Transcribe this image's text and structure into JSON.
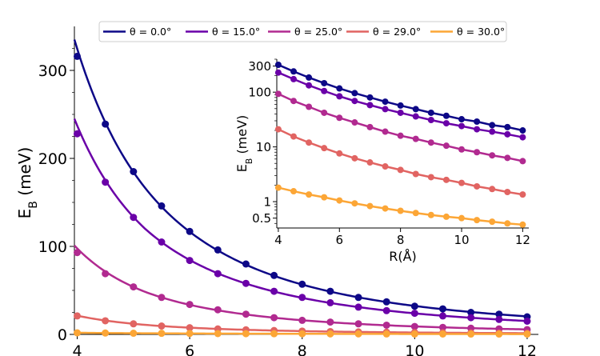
{
  "chart_data": [
    {
      "type": "line",
      "role": "main",
      "xlabel": "",
      "ylabel": "E_B (meV)",
      "xlim": [
        3.95,
        12.2
      ],
      "ylim": [
        0,
        350
      ],
      "xticks": [
        4,
        6,
        8,
        10,
        12
      ],
      "yticks": [
        0,
        100,
        200,
        300
      ],
      "grid": false,
      "legend_position": "top-center",
      "series": [
        {
          "name": "θ = 0.0°",
          "color": "#0d0887",
          "x": [
            4,
            4.5,
            5,
            5.5,
            6,
            6.5,
            7,
            7.5,
            8,
            8.5,
            9,
            9.5,
            10,
            10.5,
            11,
            11.5,
            12
          ],
          "points": [
            316,
            239,
            185,
            146,
            117,
            96,
            80,
            67,
            57,
            49,
            42,
            37,
            32,
            29,
            25,
            23,
            20
          ],
          "fit_start": 335
        },
        {
          "name": "θ = 15.0°",
          "color": "#6a00a8",
          "x": [
            4,
            4.5,
            5,
            5.5,
            6,
            6.5,
            7,
            7.5,
            8,
            8.5,
            9,
            9.5,
            10,
            10.5,
            11,
            11.5,
            12
          ],
          "points": [
            228,
            173,
            133,
            105,
            84,
            69,
            58,
            49,
            42,
            36,
            31,
            27,
            24,
            21,
            19,
            17,
            15
          ],
          "fit_start": 245
        },
        {
          "name": "θ = 25.0°",
          "color": "#b12a90",
          "x": [
            4,
            4.5,
            5,
            5.5,
            6,
            6.5,
            7,
            7.5,
            8,
            8.5,
            9,
            9.5,
            10,
            10.5,
            11,
            11.5,
            12
          ],
          "points": [
            93,
            69,
            54,
            42,
            34,
            28,
            23,
            19,
            16,
            14,
            12,
            10.5,
            9,
            8,
            7,
            6.3,
            5.5
          ],
          "fit_start": 101
        },
        {
          "name": "θ = 29.0°",
          "color": "#e16462",
          "x": [
            4,
            4.5,
            5,
            5.5,
            6,
            6.5,
            7,
            7.5,
            8,
            8.5,
            9,
            9.5,
            10,
            10.5,
            11,
            11.5,
            12
          ],
          "points": [
            21,
            15.5,
            12,
            9.5,
            7.6,
            6.2,
            5.2,
            4.4,
            3.8,
            3.2,
            2.8,
            2.5,
            2.2,
            1.9,
            1.7,
            1.5,
            1.35
          ],
          "fit_start": 22
        },
        {
          "name": "θ = 30.0°",
          "color": "#fca636",
          "x": [
            4,
            4.5,
            5,
            5.5,
            6,
            6.5,
            7,
            7.5,
            8,
            8.5,
            9,
            9.5,
            10,
            10.5,
            11,
            11.5,
            12
          ],
          "points": [
            1.8,
            1.55,
            1.35,
            1.2,
            1.05,
            0.93,
            0.83,
            0.75,
            0.68,
            0.62,
            0.57,
            0.53,
            0.5,
            0.46,
            0.43,
            0.4,
            0.38
          ],
          "fit_start": 1.9
        }
      ],
      "legend": [
        "θ = 0.0°",
        "θ = 15.0°",
        "θ = 25.0°",
        "θ = 29.0°",
        "θ = 30.0°"
      ]
    },
    {
      "type": "line",
      "role": "inset",
      "xlabel": "R(Å)",
      "ylabel": "E_B (meV)",
      "yscale": "log",
      "xlim": [
        3.95,
        12.2
      ],
      "ylim": [
        0.33,
        400
      ],
      "xticks": [
        4,
        6,
        8,
        10,
        12
      ],
      "yticks": [
        0.5,
        1,
        10,
        100,
        300
      ],
      "grid": false,
      "series_ref": "same data as main panel"
    }
  ],
  "labels": {
    "main_ylabel_base": "E",
    "main_ylabel_sub": "B",
    "main_ylabel_unit": " (meV)",
    "inset_ylabel_base": "E",
    "inset_ylabel_sub": "B",
    "inset_ylabel_unit": " (meV)",
    "inset_xlabel": "R(Å)",
    "main_xticks": [
      "4",
      "6",
      "8",
      "10",
      "12"
    ],
    "main_yticks": [
      "0",
      "100",
      "200",
      "300"
    ],
    "inset_xticks": [
      "4",
      "6",
      "8",
      "10",
      "12"
    ],
    "inset_yticks": [
      "0.5",
      "1",
      "10",
      "100",
      "300"
    ]
  }
}
